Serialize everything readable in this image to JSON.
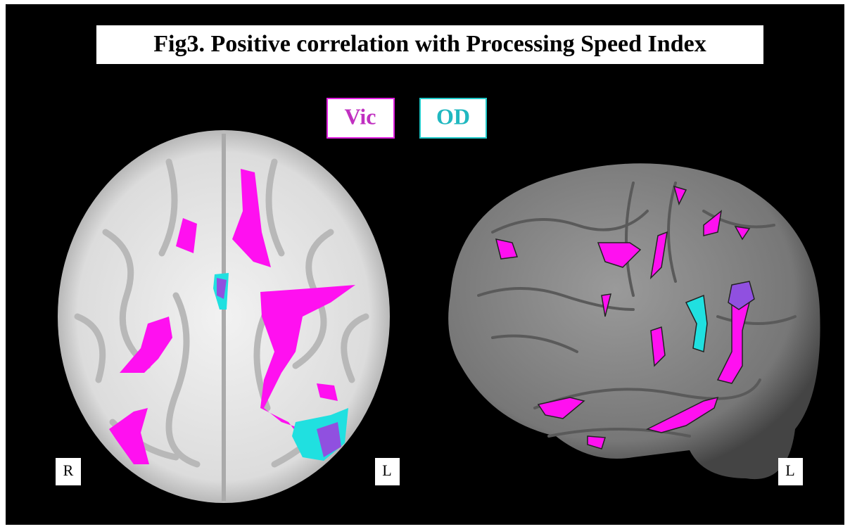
{
  "title": "Fig3. Positive correlation with Processing Speed Index",
  "legend": [
    "Vic",
    "OD"
  ],
  "axial_view": {
    "left_label": "R",
    "right_label": "L"
  },
  "sagittal_view": {
    "right_label": "L"
  }
}
